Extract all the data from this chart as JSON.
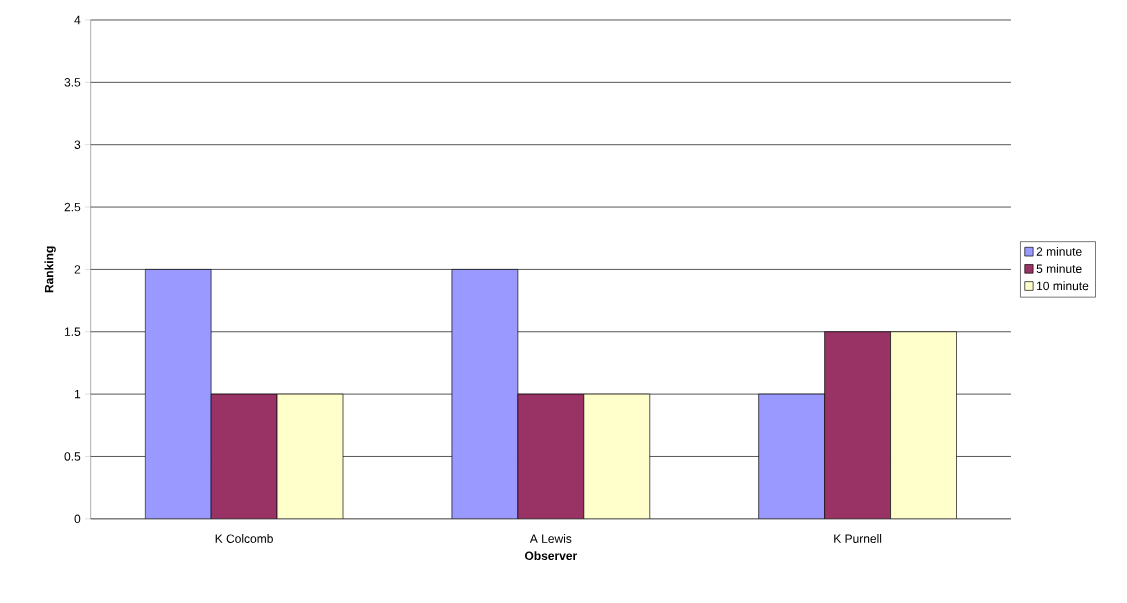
{
  "chart_data": {
    "type": "bar",
    "xlabel": "Observer",
    "ylabel": "Ranking",
    "categories": [
      "K Colcomb",
      "A Lewis",
      "K Purnell"
    ],
    "series": [
      {
        "name": "2 minute",
        "color": "#9999ff",
        "values": [
          2,
          2,
          1
        ]
      },
      {
        "name": "5 minute",
        "color": "#993366",
        "values": [
          1,
          1,
          1.5
        ]
      },
      {
        "name": "10 minute",
        "color": "#ffffcc",
        "values": [
          1,
          1,
          1.5
        ]
      }
    ],
    "ylim": [
      0,
      4
    ],
    "yticks": [
      0,
      0.5,
      1,
      1.5,
      2,
      2.5,
      3,
      3.5,
      4
    ],
    "grid": "y",
    "legend": "right"
  }
}
